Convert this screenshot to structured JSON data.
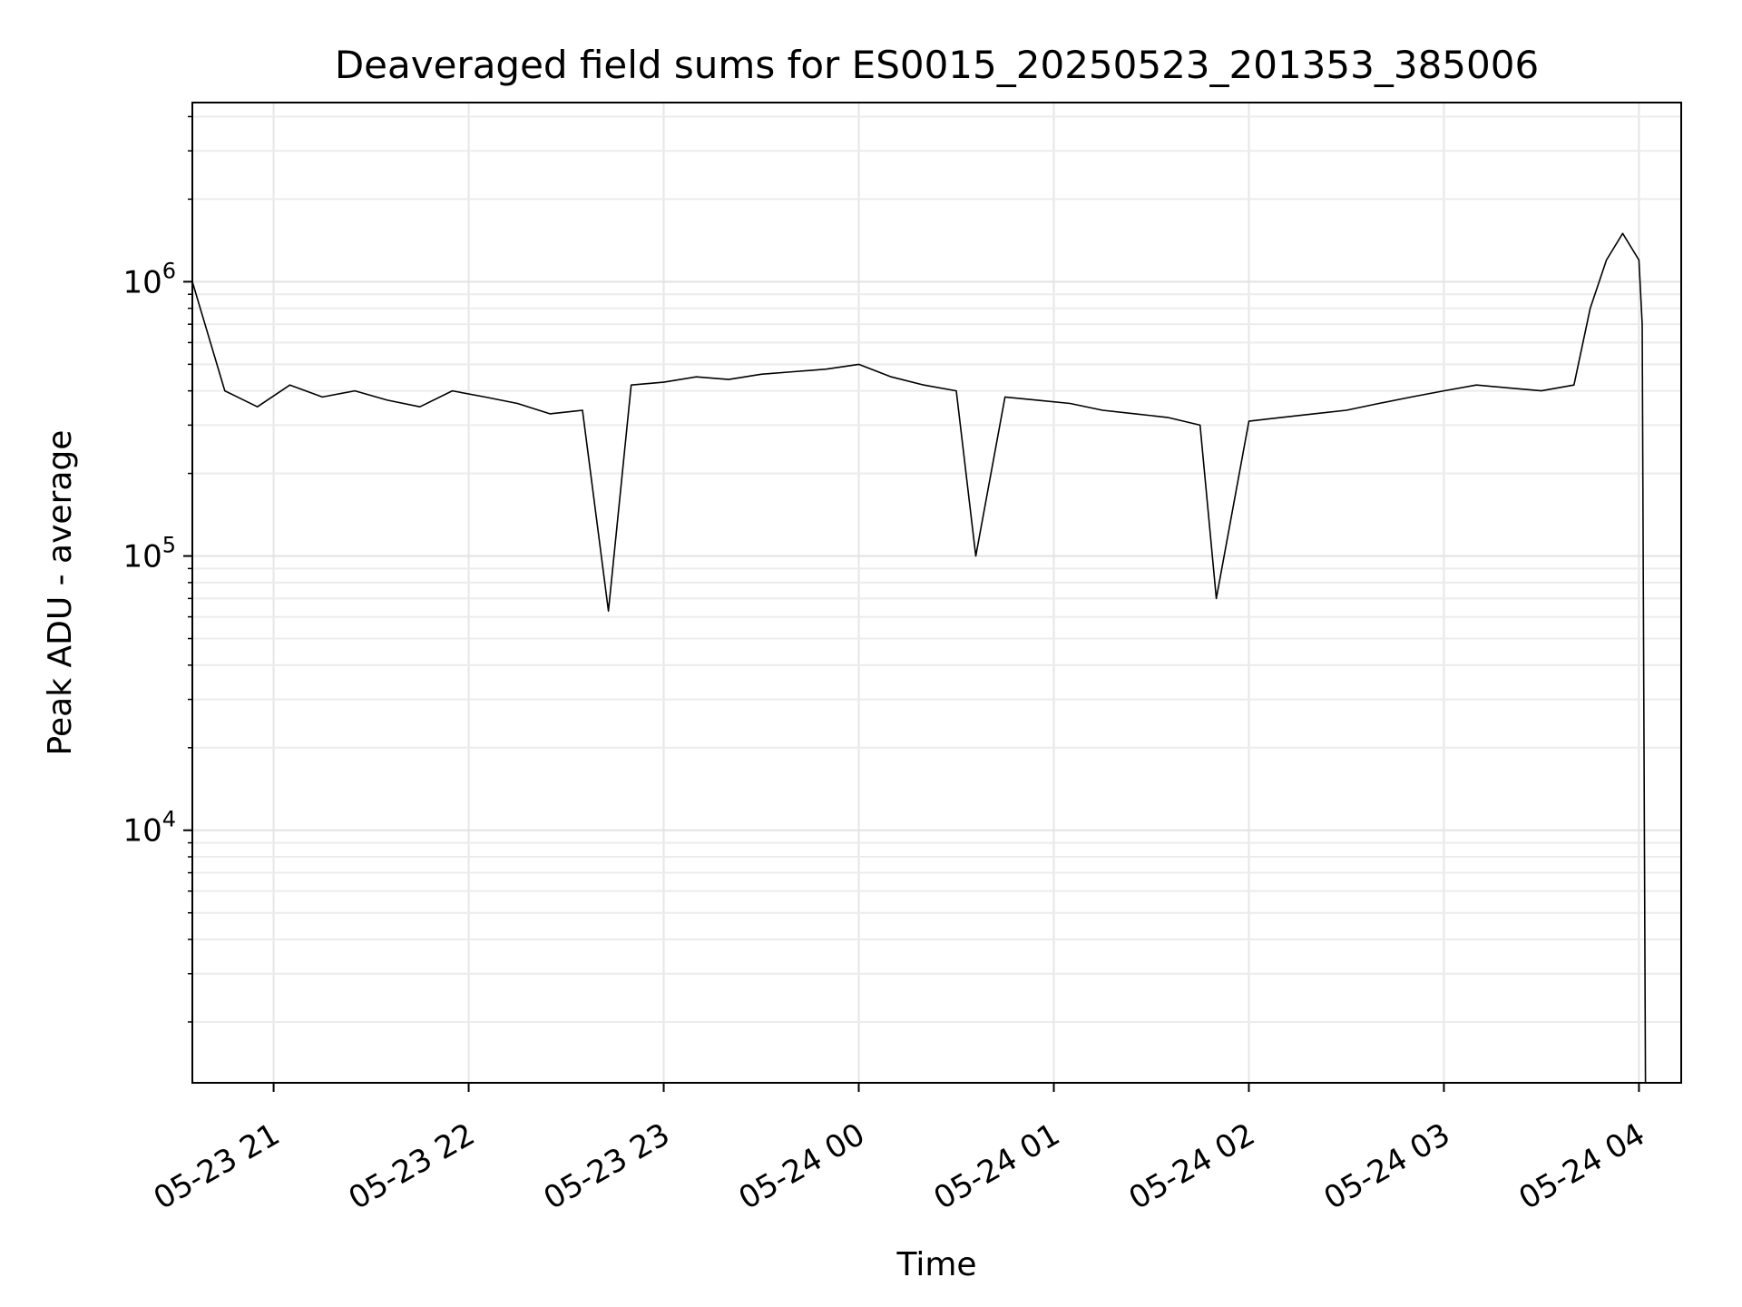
{
  "chart_data": {
    "type": "line",
    "title": "Deaveraged field sums for ES0015_20250523_201353_385006",
    "xlabel": "Time",
    "ylabel": "Peak ADU - average",
    "yscale": "log",
    "ylim": [
      1200,
      4500000
    ],
    "xlim": [
      "2025-05-23 20:35",
      "2025-05-24 04:13"
    ],
    "grid": true,
    "line_color": "#000000",
    "x_ticks": [
      {
        "value": "2025-05-23 21:00",
        "label": "05-23 21"
      },
      {
        "value": "2025-05-23 22:00",
        "label": "05-23 22"
      },
      {
        "value": "2025-05-23 23:00",
        "label": "05-23 23"
      },
      {
        "value": "2025-05-24 00:00",
        "label": "05-24 00"
      },
      {
        "value": "2025-05-24 01:00",
        "label": "05-24 01"
      },
      {
        "value": "2025-05-24 02:00",
        "label": "05-24 02"
      },
      {
        "value": "2025-05-24 03:00",
        "label": "05-24 03"
      },
      {
        "value": "2025-05-24 04:00",
        "label": "05-24 04"
      }
    ],
    "y_ticks": [
      {
        "value": 10000,
        "base": "10",
        "exp": "4"
      },
      {
        "value": 100000,
        "base": "10",
        "exp": "5"
      },
      {
        "value": 1000000,
        "base": "10",
        "exp": "6"
      }
    ],
    "series": [
      {
        "x": [
          "2025-05-23 20:35",
          "2025-05-23 20:45",
          "2025-05-23 20:55",
          "2025-05-23 21:05",
          "2025-05-23 21:15",
          "2025-05-23 21:25",
          "2025-05-23 21:35",
          "2025-05-23 21:45",
          "2025-05-23 21:55",
          "2025-05-23 22:05",
          "2025-05-23 22:15",
          "2025-05-23 22:25",
          "2025-05-23 22:35",
          "2025-05-23 22:43",
          "2025-05-23 22:50",
          "2025-05-23 23:00",
          "2025-05-23 23:10",
          "2025-05-23 23:20",
          "2025-05-23 23:30",
          "2025-05-23 23:40",
          "2025-05-23 23:50",
          "2025-05-24 00:00",
          "2025-05-24 00:10",
          "2025-05-24 00:20",
          "2025-05-24 00:30",
          "2025-05-24 00:36",
          "2025-05-24 00:45",
          "2025-05-24 00:55",
          "2025-05-24 01:05",
          "2025-05-24 01:15",
          "2025-05-24 01:25",
          "2025-05-24 01:35",
          "2025-05-24 01:45",
          "2025-05-24 01:50",
          "2025-05-24 02:00",
          "2025-05-24 02:10",
          "2025-05-24 02:20",
          "2025-05-24 02:30",
          "2025-05-24 02:40",
          "2025-05-24 02:50",
          "2025-05-24 03:00",
          "2025-05-24 03:10",
          "2025-05-24 03:20",
          "2025-05-24 03:30",
          "2025-05-24 03:40",
          "2025-05-24 03:45",
          "2025-05-24 03:50",
          "2025-05-24 03:55",
          "2025-05-24 04:00",
          "2025-05-24 04:01",
          "2025-05-24 04:02"
        ],
        "y": [
          1000000,
          400000,
          350000,
          420000,
          380000,
          400000,
          370000,
          350000,
          400000,
          380000,
          360000,
          330000,
          340000,
          63000,
          420000,
          430000,
          450000,
          440000,
          460000,
          470000,
          480000,
          500000,
          450000,
          420000,
          400000,
          100000,
          380000,
          370000,
          360000,
          340000,
          330000,
          320000,
          300000,
          70000,
          310000,
          320000,
          330000,
          340000,
          360000,
          380000,
          400000,
          420000,
          410000,
          400000,
          420000,
          800000,
          1200000,
          1500000,
          1200000,
          700000,
          1200
        ]
      }
    ]
  }
}
